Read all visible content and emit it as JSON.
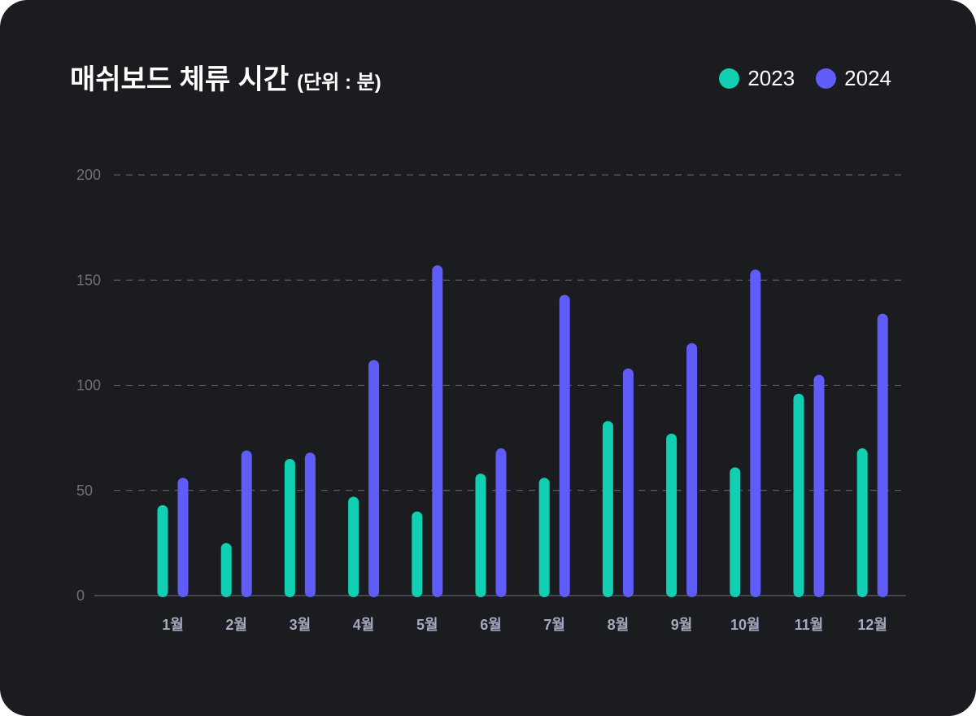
{
  "chart_data": {
    "type": "bar",
    "title": "매쉬보드 체류 시간",
    "unit_label": "(단위 : 분)",
    "categories": [
      "1월",
      "2월",
      "3월",
      "4월",
      "5월",
      "6월",
      "7월",
      "8월",
      "9월",
      "10월",
      "11월",
      "12월"
    ],
    "series": [
      {
        "name": "2023",
        "color": "#10cfb3",
        "values": [
          43,
          25,
          65,
          47,
          40,
          58,
          56,
          83,
          77,
          61,
          96,
          70
        ]
      },
      {
        "name": "2024",
        "color": "#5f5cf8",
        "values": [
          56,
          69,
          68,
          112,
          157,
          70,
          143,
          108,
          120,
          155,
          105,
          134
        ]
      }
    ],
    "y_ticks": [
      "0",
      "50",
      "100",
      "150",
      "200"
    ],
    "ylim": [
      0,
      200
    ],
    "grid": true,
    "legend": "top-right",
    "xlabel": "",
    "ylabel": ""
  }
}
